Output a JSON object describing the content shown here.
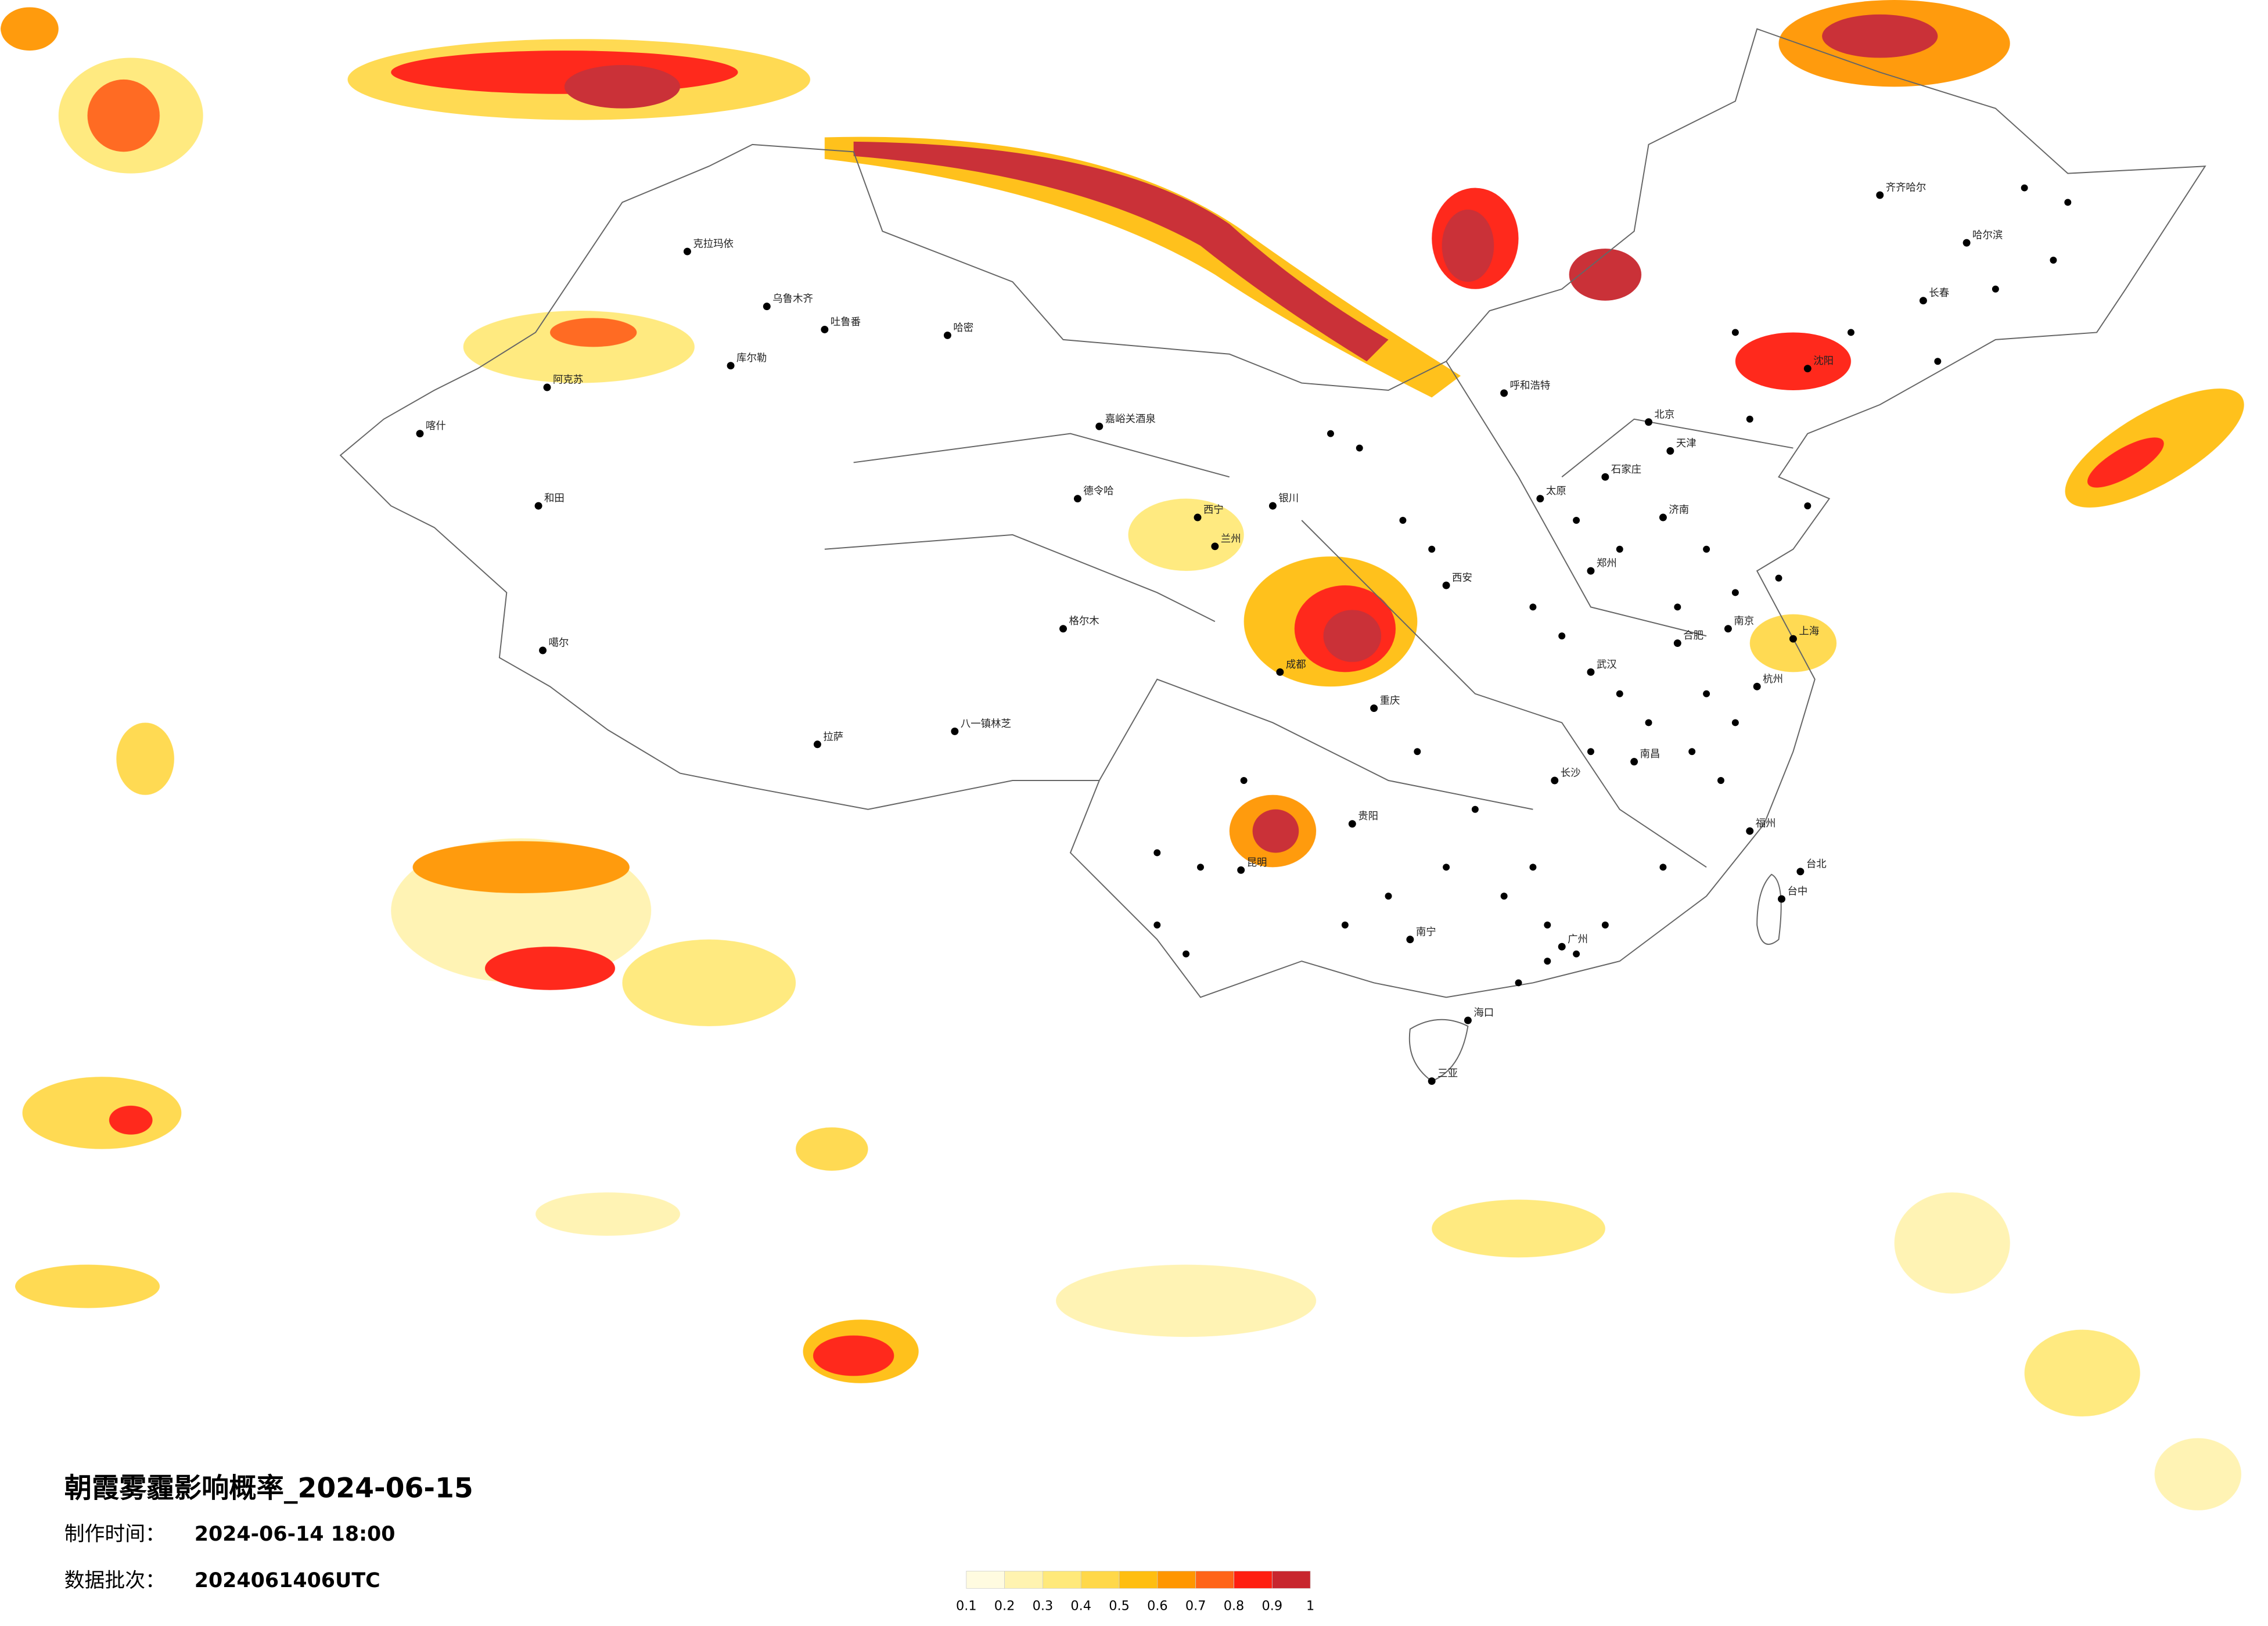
{
  "header": {
    "title": "朝霞雾霾影响概率_2024-06-15",
    "made_label": "制作时间：",
    "made_time": "2024-06-14 18:00",
    "batch_label": "数据批次：",
    "batch": "2024061406UTC"
  },
  "legend": {
    "colors": [
      "#fffbe0",
      "#fff3b0",
      "#ffe97a",
      "#ffd84a",
      "#ffbe10",
      "#ff9600",
      "#ff6418",
      "#ff1e10",
      "#c8262e"
    ],
    "ticks": [
      0.1,
      0.2,
      0.3,
      0.4,
      0.5,
      0.6,
      0.7,
      0.8,
      0.9,
      1
    ]
  },
  "cities": [
    "克拉玛依",
    "乌鲁木齐",
    "吐鲁番",
    "哈密",
    "库尔勒",
    "阿克苏",
    "喀什",
    "和田",
    "噶尔",
    "嘉峪关酒泉",
    "德令哈",
    "格尔木",
    "拉萨",
    "八一镇林芝",
    "西宁",
    "兰州",
    "银川",
    "呼和浩特",
    "北京",
    "天津",
    "石家庄",
    "太原",
    "西安",
    "郑州",
    "济南",
    "沈阳",
    "长春",
    "哈尔滨",
    "齐齐哈尔",
    "成都",
    "重庆",
    "昆明",
    "贵阳",
    "南宁",
    "海口",
    "三亚",
    "长沙",
    "武汉",
    "南昌",
    "合肥",
    "南京",
    "上海",
    "杭州",
    "福州",
    "广州",
    "台中",
    "台北"
  ]
}
